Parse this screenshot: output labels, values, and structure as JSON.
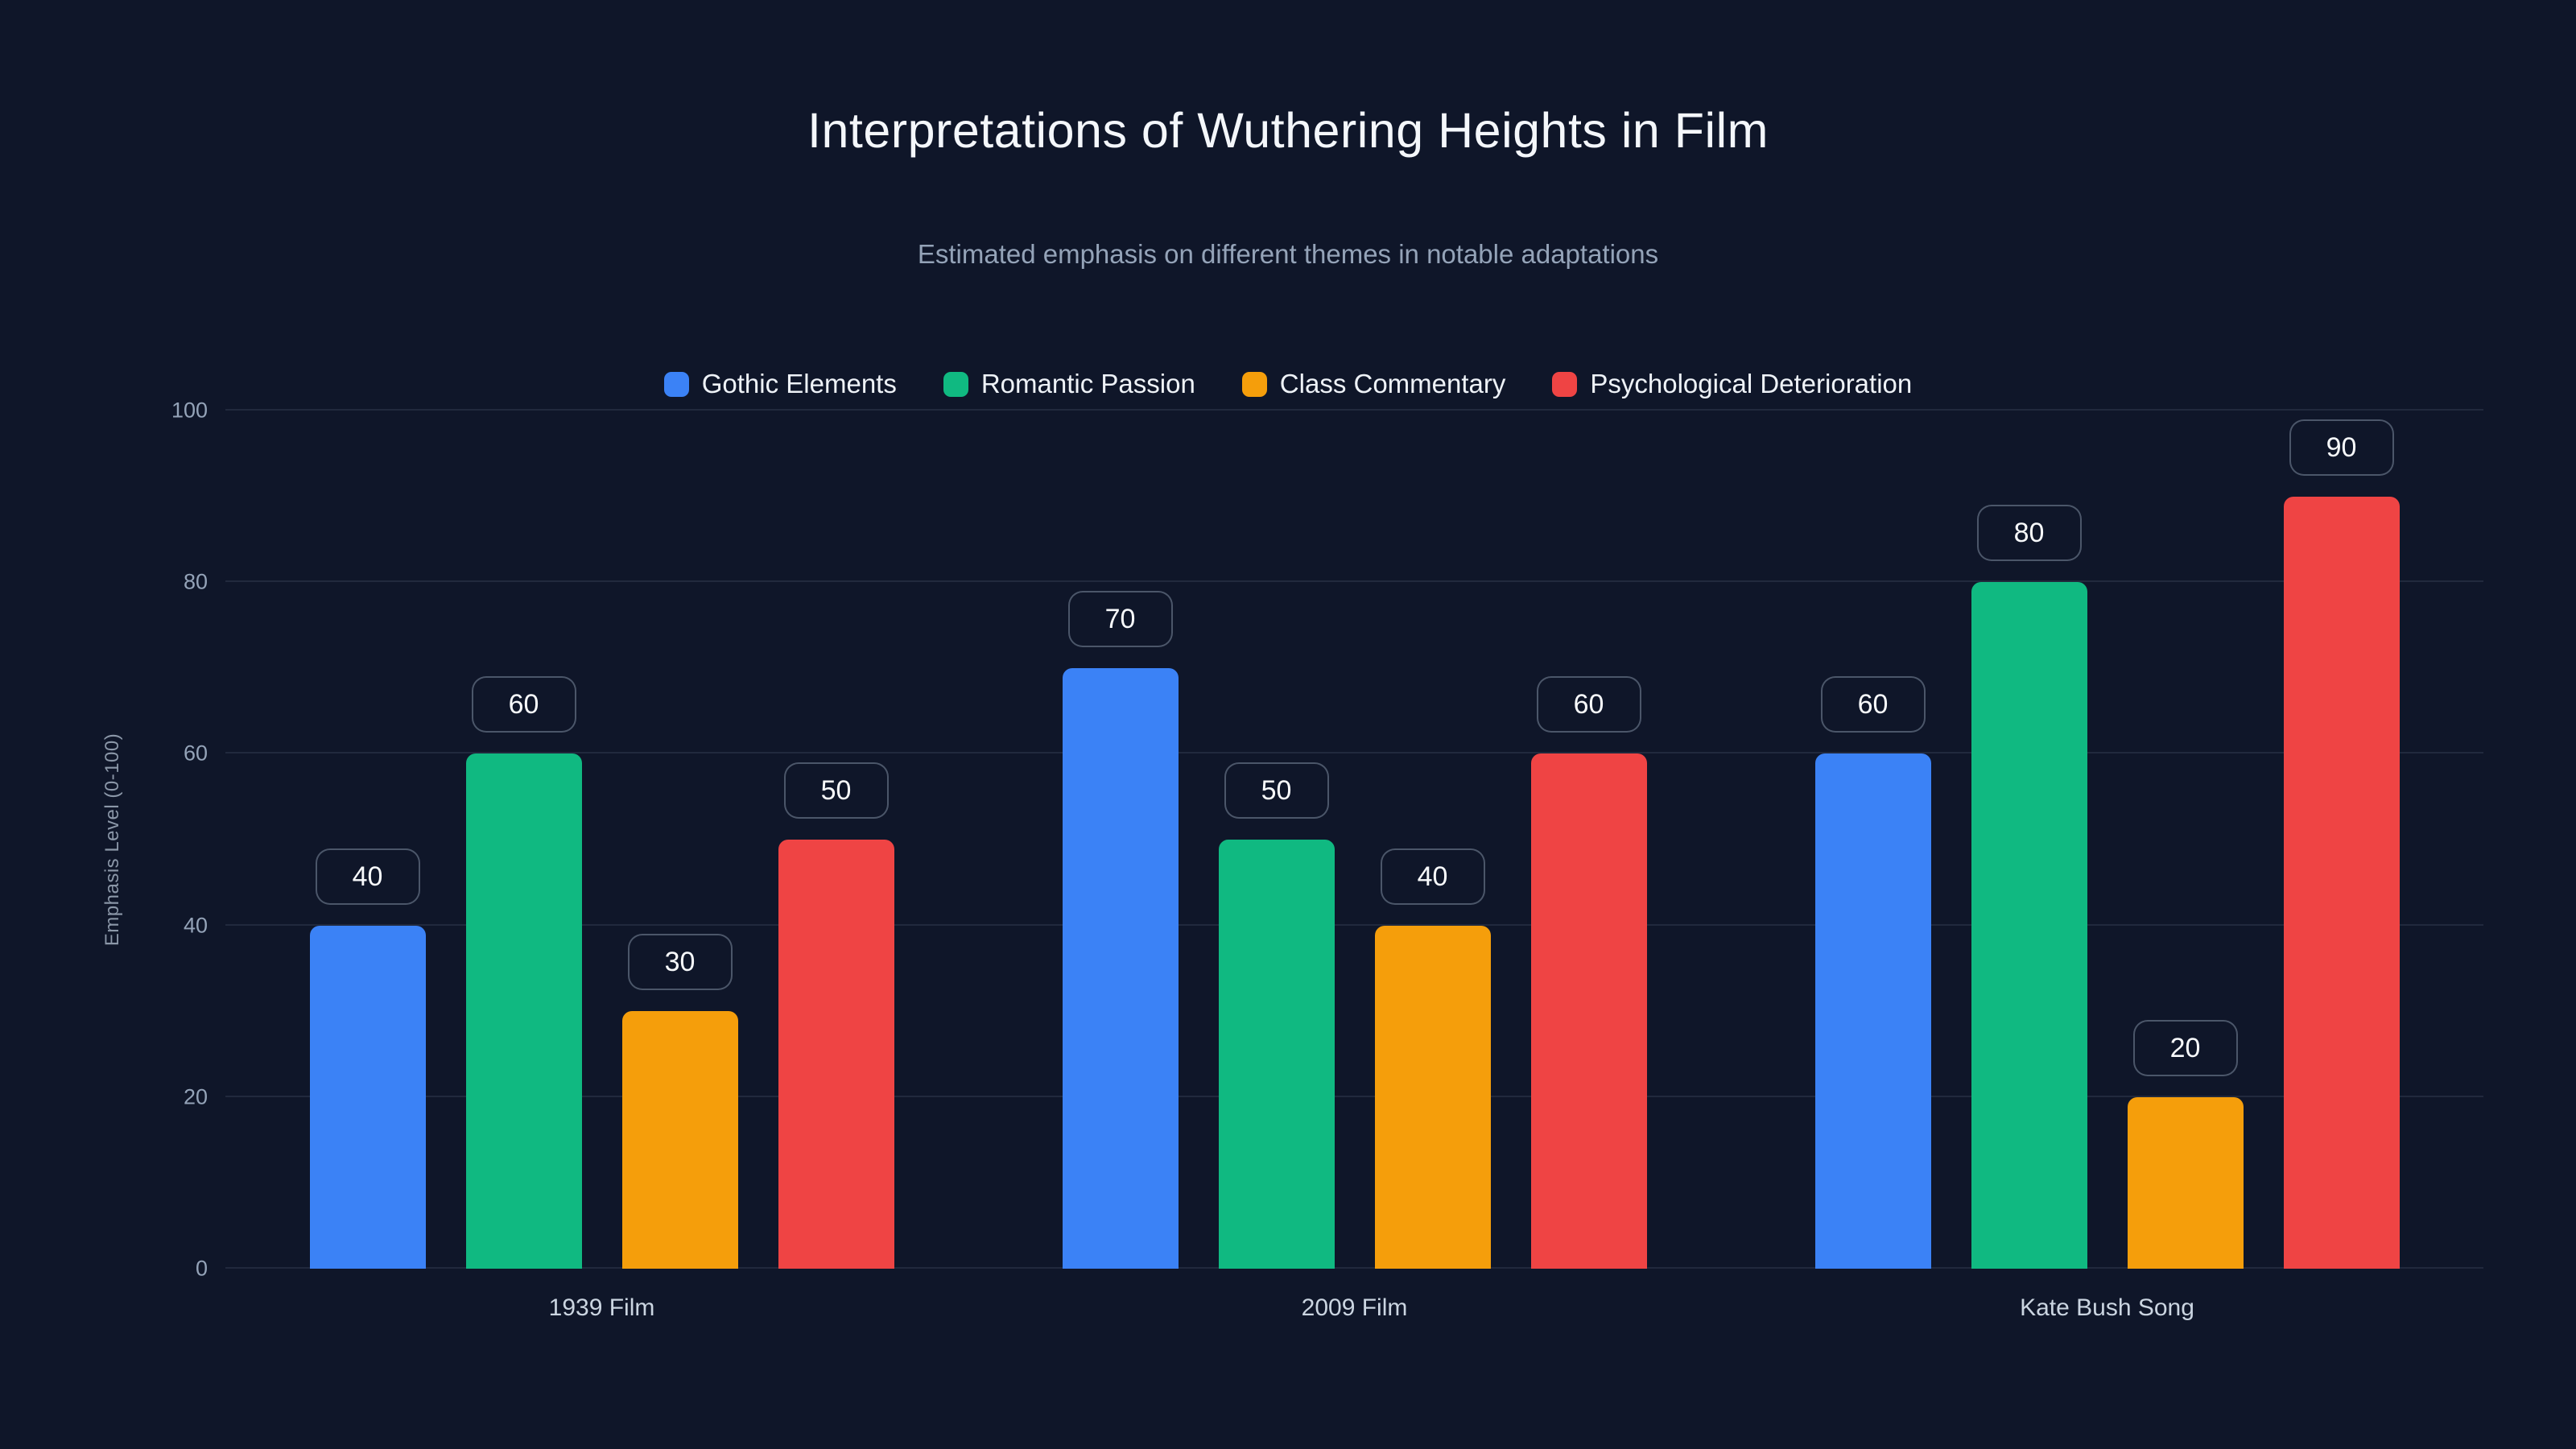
{
  "page": {
    "background": "#0f1629"
  },
  "chart_data": {
    "type": "bar",
    "title": "Interpretations of Wuthering Heights in Film",
    "subtitle": "Estimated emphasis on different themes in notable adaptations",
    "ylabel": "Emphasis Level (0-100)",
    "ylim": [
      0,
      100
    ],
    "yticks": [
      0,
      20,
      40,
      60,
      80,
      100
    ],
    "grid": "horizontal",
    "legend_position": "top",
    "bar_labels": true,
    "categories": [
      "1939 Film",
      "2009 Film",
      "Kate Bush Song"
    ],
    "series": [
      {
        "name": "Gothic Elements",
        "color": "#3b82f6",
        "values": [
          40,
          70,
          60
        ]
      },
      {
        "name": "Romantic Passion",
        "color": "#10b981",
        "values": [
          60,
          50,
          80
        ]
      },
      {
        "name": "Class Commentary",
        "color": "#f59e0b",
        "values": [
          30,
          40,
          20
        ]
      },
      {
        "name": "Psychological Deterioration",
        "color": "#ef4444",
        "values": [
          50,
          60,
          90
        ]
      }
    ]
  }
}
